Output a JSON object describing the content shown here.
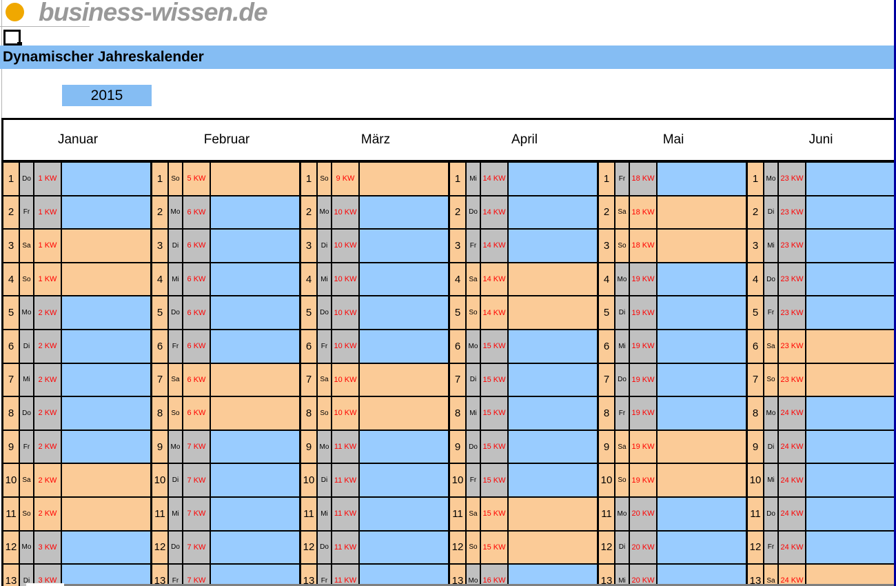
{
  "logo": {
    "icon": "orange-dot-icon",
    "text": "business-wissen.de"
  },
  "title": "Dynamischer Jahreskalender",
  "year": "2015",
  "weekend_days": [
    "Sa",
    "So"
  ],
  "colors": {
    "header_blue": "#85bdf3",
    "day_blue": "#99ccff",
    "weekend_orange": "#fbcb97",
    "label_gray": "#c0c0c0",
    "week_red": "#ff0000",
    "logo_orange": "#f0a800"
  },
  "calendar": {
    "months": [
      {
        "name": "Januar",
        "days": [
          {
            "d": 1,
            "w": "Do",
            "kw": "1 KW"
          },
          {
            "d": 2,
            "w": "Fr",
            "kw": "1 KW"
          },
          {
            "d": 3,
            "w": "Sa",
            "kw": "1 KW"
          },
          {
            "d": 4,
            "w": "So",
            "kw": "1 KW"
          },
          {
            "d": 5,
            "w": "Mo",
            "kw": "2 KW"
          },
          {
            "d": 6,
            "w": "Di",
            "kw": "2 KW"
          },
          {
            "d": 7,
            "w": "Mi",
            "kw": "2 KW"
          },
          {
            "d": 8,
            "w": "Do",
            "kw": "2 KW"
          },
          {
            "d": 9,
            "w": "Fr",
            "kw": "2 KW"
          },
          {
            "d": 10,
            "w": "Sa",
            "kw": "2 KW"
          },
          {
            "d": 11,
            "w": "So",
            "kw": "2 KW"
          },
          {
            "d": 12,
            "w": "Mo",
            "kw": "3 KW"
          },
          {
            "d": 13,
            "w": "Di",
            "kw": "3 KW"
          }
        ]
      },
      {
        "name": "Februar",
        "days": [
          {
            "d": 1,
            "w": "So",
            "kw": "5 KW"
          },
          {
            "d": 2,
            "w": "Mo",
            "kw": "6 KW"
          },
          {
            "d": 3,
            "w": "Di",
            "kw": "6 KW"
          },
          {
            "d": 4,
            "w": "Mi",
            "kw": "6 KW"
          },
          {
            "d": 5,
            "w": "Do",
            "kw": "6 KW"
          },
          {
            "d": 6,
            "w": "Fr",
            "kw": "6 KW"
          },
          {
            "d": 7,
            "w": "Sa",
            "kw": "6 KW"
          },
          {
            "d": 8,
            "w": "So",
            "kw": "6 KW"
          },
          {
            "d": 9,
            "w": "Mo",
            "kw": "7 KW"
          },
          {
            "d": 10,
            "w": "Di",
            "kw": "7 KW"
          },
          {
            "d": 11,
            "w": "Mi",
            "kw": "7 KW"
          },
          {
            "d": 12,
            "w": "Do",
            "kw": "7 KW"
          },
          {
            "d": 13,
            "w": "Fr",
            "kw": "7 KW"
          }
        ]
      },
      {
        "name": "März",
        "days": [
          {
            "d": 1,
            "w": "So",
            "kw": "9 KW"
          },
          {
            "d": 2,
            "w": "Mo",
            "kw": "10 KW"
          },
          {
            "d": 3,
            "w": "Di",
            "kw": "10 KW"
          },
          {
            "d": 4,
            "w": "Mi",
            "kw": "10 KW"
          },
          {
            "d": 5,
            "w": "Do",
            "kw": "10 KW"
          },
          {
            "d": 6,
            "w": "Fr",
            "kw": "10 KW"
          },
          {
            "d": 7,
            "w": "Sa",
            "kw": "10 KW"
          },
          {
            "d": 8,
            "w": "So",
            "kw": "10 KW"
          },
          {
            "d": 9,
            "w": "Mo",
            "kw": "11 KW"
          },
          {
            "d": 10,
            "w": "Di",
            "kw": "11 KW"
          },
          {
            "d": 11,
            "w": "Mi",
            "kw": "11 KW"
          },
          {
            "d": 12,
            "w": "Do",
            "kw": "11 KW"
          },
          {
            "d": 13,
            "w": "Fr",
            "kw": "11 KW"
          }
        ]
      },
      {
        "name": "April",
        "days": [
          {
            "d": 1,
            "w": "Mi",
            "kw": "14 KW"
          },
          {
            "d": 2,
            "w": "Do",
            "kw": "14 KW"
          },
          {
            "d": 3,
            "w": "Fr",
            "kw": "14 KW"
          },
          {
            "d": 4,
            "w": "Sa",
            "kw": "14 KW"
          },
          {
            "d": 5,
            "w": "So",
            "kw": "14 KW"
          },
          {
            "d": 6,
            "w": "Mo",
            "kw": "15 KW"
          },
          {
            "d": 7,
            "w": "Di",
            "kw": "15 KW"
          },
          {
            "d": 8,
            "w": "Mi",
            "kw": "15 KW"
          },
          {
            "d": 9,
            "w": "Do",
            "kw": "15 KW"
          },
          {
            "d": 10,
            "w": "Fr",
            "kw": "15 KW"
          },
          {
            "d": 11,
            "w": "Sa",
            "kw": "15 KW"
          },
          {
            "d": 12,
            "w": "So",
            "kw": "15 KW"
          },
          {
            "d": 13,
            "w": "Mo",
            "kw": "16 KW"
          }
        ]
      },
      {
        "name": "Mai",
        "days": [
          {
            "d": 1,
            "w": "Fr",
            "kw": "18 KW"
          },
          {
            "d": 2,
            "w": "Sa",
            "kw": "18 KW"
          },
          {
            "d": 3,
            "w": "So",
            "kw": "18 KW"
          },
          {
            "d": 4,
            "w": "Mo",
            "kw": "19 KW"
          },
          {
            "d": 5,
            "w": "Di",
            "kw": "19 KW"
          },
          {
            "d": 6,
            "w": "Mi",
            "kw": "19 KW"
          },
          {
            "d": 7,
            "w": "Do",
            "kw": "19 KW"
          },
          {
            "d": 8,
            "w": "Fr",
            "kw": "19 KW"
          },
          {
            "d": 9,
            "w": "Sa",
            "kw": "19 KW"
          },
          {
            "d": 10,
            "w": "So",
            "kw": "19 KW"
          },
          {
            "d": 11,
            "w": "Mo",
            "kw": "20 KW"
          },
          {
            "d": 12,
            "w": "Di",
            "kw": "20 KW"
          },
          {
            "d": 13,
            "w": "Mi",
            "kw": "20 KW"
          }
        ]
      },
      {
        "name": "Juni",
        "days": [
          {
            "d": 1,
            "w": "Mo",
            "kw": "23 KW"
          },
          {
            "d": 2,
            "w": "Di",
            "kw": "23 KW"
          },
          {
            "d": 3,
            "w": "Mi",
            "kw": "23 KW"
          },
          {
            "d": 4,
            "w": "Do",
            "kw": "23 KW"
          },
          {
            "d": 5,
            "w": "Fr",
            "kw": "23 KW"
          },
          {
            "d": 6,
            "w": "Sa",
            "kw": "23 KW"
          },
          {
            "d": 7,
            "w": "So",
            "kw": "23 KW"
          },
          {
            "d": 8,
            "w": "Mo",
            "kw": "24 KW"
          },
          {
            "d": 9,
            "w": "Di",
            "kw": "24 KW"
          },
          {
            "d": 10,
            "w": "Mi",
            "kw": "24 KW"
          },
          {
            "d": 11,
            "w": "Do",
            "kw": "24 KW"
          },
          {
            "d": 12,
            "w": "Fr",
            "kw": "24 KW"
          },
          {
            "d": 13,
            "w": "Sa",
            "kw": "24 KW"
          }
        ]
      }
    ]
  }
}
